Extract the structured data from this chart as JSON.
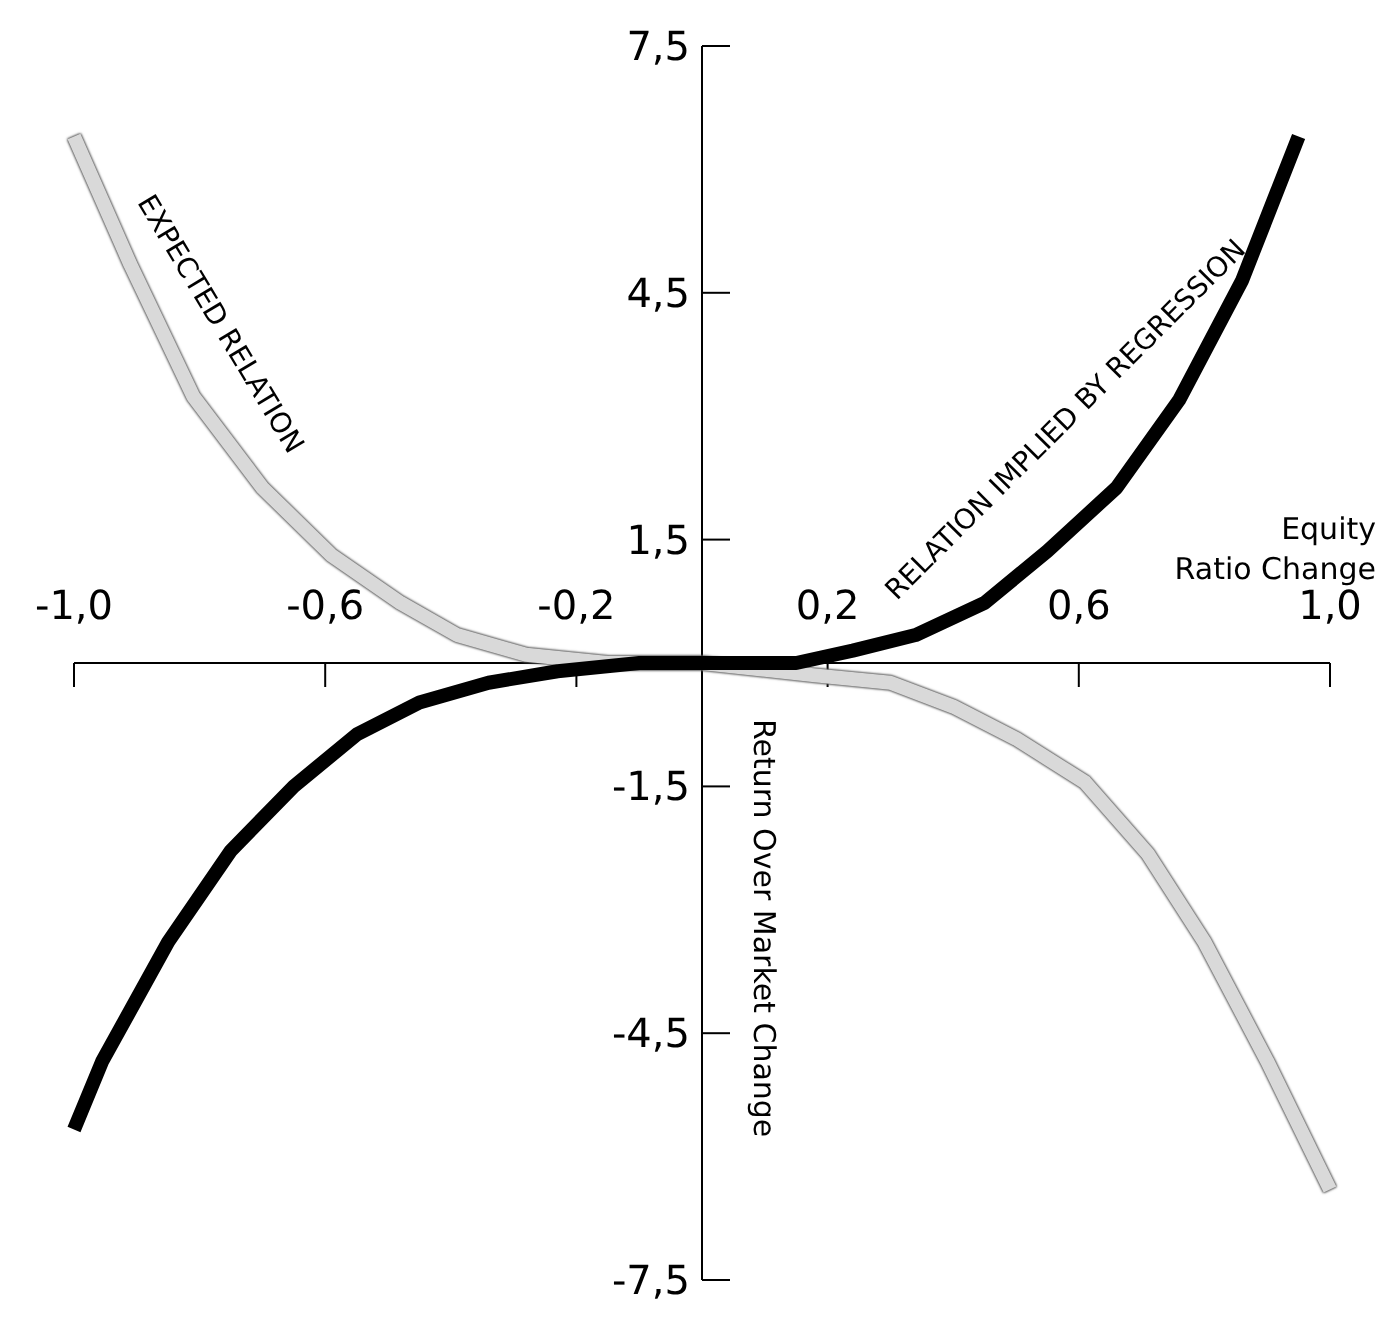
{
  "chart_data": {
    "type": "line",
    "xlabel": "Equity\nRatio Change",
    "ylabel": "Return Over Market Change",
    "xlim": [
      -1,
      1
    ],
    "ylim": [
      -7.5,
      7.5
    ],
    "xticks": [
      {
        "value": -1,
        "label": "-1,0"
      },
      {
        "value": -0.6,
        "label": "-0,6"
      },
      {
        "value": -0.2,
        "label": "-0,2"
      },
      {
        "value": 0.2,
        "label": "0,2"
      },
      {
        "value": 0.6,
        "label": "0,6"
      },
      {
        "value": 1,
        "label": "1,0"
      }
    ],
    "yticks": [
      {
        "value": -7.5,
        "label": "-7,5"
      },
      {
        "value": -4.5,
        "label": "-4,5"
      },
      {
        "value": -1.5,
        "label": "-1,5"
      },
      {
        "value": 1.5,
        "label": "1,5"
      },
      {
        "value": 4.5,
        "label": "4,5"
      },
      {
        "value": 7.5,
        "label": "7,5"
      }
    ],
    "grid": false,
    "legend": false,
    "marker": "none",
    "line_style": "solid",
    "series": [
      {
        "name": "EXPECTED RELATION",
        "color": "#d9d9d9",
        "x": [
          -1.0,
          -0.91,
          -0.81,
          -0.7,
          -0.59,
          -0.48,
          -0.39,
          -0.28,
          -0.15,
          0,
          0.18,
          0.3,
          0.4,
          0.5,
          0.61,
          0.71,
          0.8,
          0.9,
          1.0
        ],
        "values": [
          6.4,
          4.84,
          3.24,
          2.13,
          1.31,
          0.73,
          0.34,
          0.1,
          0,
          0,
          -0.15,
          -0.24,
          -0.53,
          -0.92,
          -1.45,
          -2.32,
          -3.39,
          -4.84,
          -6.4
        ]
      },
      {
        "name": "RELATION IMPLIED BY REGRESSION",
        "color": "#000000",
        "x": [
          -1.0,
          -0.955,
          -0.85,
          -0.75,
          -0.65,
          -0.55,
          -0.45,
          -0.34,
          -0.23,
          -0.1,
          0,
          0.15,
          0.24,
          0.34,
          0.45,
          0.55,
          0.66,
          0.76,
          0.86,
          0.95
        ],
        "values": [
          -5.67,
          -4.84,
          -3.39,
          -2.28,
          -1.5,
          -0.87,
          -0.48,
          -0.24,
          -0.1,
          0,
          0,
          0,
          0.15,
          0.34,
          0.73,
          1.36,
          2.13,
          3.2,
          4.65,
          6.4
        ]
      }
    ]
  }
}
